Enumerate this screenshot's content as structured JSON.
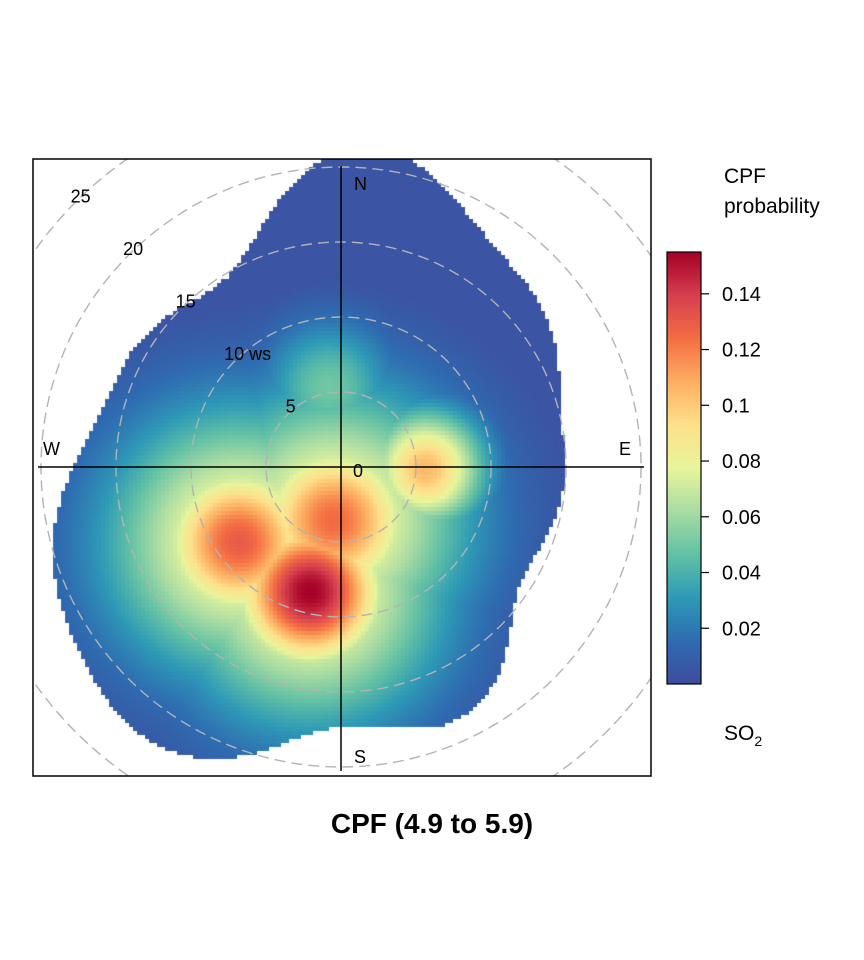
{
  "chart_data": {
    "type": "heatmap",
    "subtype": "polar-plot",
    "title": "CPF (4.9 to 5.9)",
    "pollutant_label": "SO",
    "pollutant_subscript": "2",
    "legend_title_line1": "CPF",
    "legend_title_line2": "probability",
    "legend_ticks": [
      {
        "value": 0.14,
        "label": "0.14"
      },
      {
        "value": 0.12,
        "label": "0.12"
      },
      {
        "value": 0.1,
        "label": "0.1"
      },
      {
        "value": 0.08,
        "label": "0.08"
      },
      {
        "value": 0.06,
        "label": "0.06"
      },
      {
        "value": 0.04,
        "label": "0.04"
      },
      {
        "value": 0.02,
        "label": "0.02"
      }
    ],
    "color_range": [
      0,
      0.155
    ],
    "palette": [
      "#3F4C9E",
      "#2E6CB1",
      "#2E9AB6",
      "#62C1A4",
      "#A9DCA3",
      "#E8F59B",
      "#FEE08B",
      "#FDAE61",
      "#F46D43",
      "#D53E4F",
      "#A50026"
    ],
    "radius_max_ws": 25,
    "rings": [
      {
        "ws": 5,
        "label": "5"
      },
      {
        "ws": 10,
        "label": "10 ws"
      },
      {
        "ws": 15,
        "label": "15"
      },
      {
        "ws": 20,
        "label": "20"
      },
      {
        "ws": 25,
        "label": "25"
      }
    ],
    "center_label": "0",
    "directions": {
      "n": "N",
      "e": "E",
      "s": "S",
      "w": "W"
    },
    "hotspots": [
      {
        "name": "south-southwest peak",
        "wd_deg": 195,
        "ws": 8.5,
        "cpf": 0.155
      },
      {
        "name": "southwest lobe",
        "wd_deg": 235,
        "ws": 8.5,
        "cpf": 0.13
      },
      {
        "name": "central south",
        "wd_deg": 190,
        "ws": 3.5,
        "cpf": 0.125
      },
      {
        "name": "east arm",
        "wd_deg": 90,
        "ws": 5.5,
        "cpf": 0.105
      },
      {
        "name": "north-northwest",
        "wd_deg": 350,
        "ws": 5.5,
        "cpf": 0.05
      }
    ]
  }
}
